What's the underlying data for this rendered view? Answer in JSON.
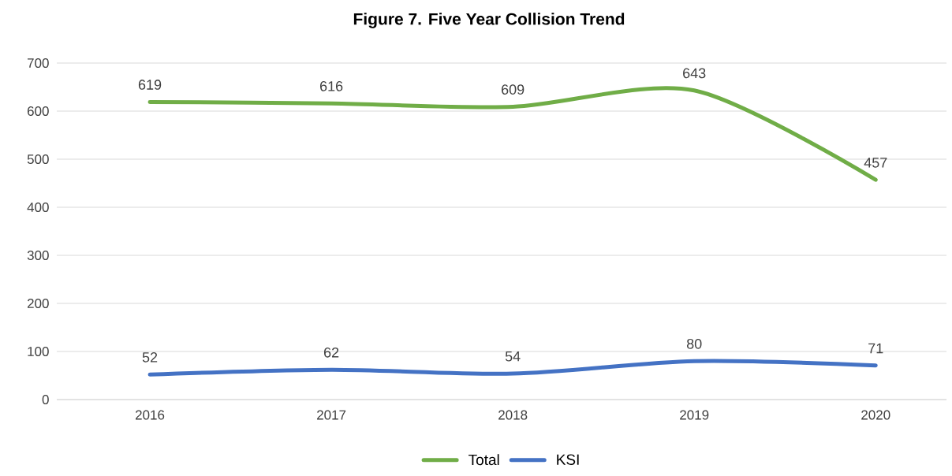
{
  "chart_data": {
    "type": "line",
    "title": "Figure 7. Five Year Collision Trend",
    "categories": [
      "2016",
      "2017",
      "2018",
      "2019",
      "2020"
    ],
    "series": [
      {
        "name": "Total",
        "color": "#70ad47",
        "values": [
          619,
          616,
          609,
          643,
          457
        ]
      },
      {
        "name": "KSI",
        "color": "#4472c4",
        "values": [
          52,
          62,
          54,
          80,
          71
        ]
      }
    ],
    "ylim": [
      0,
      700
    ],
    "yticks": [
      0,
      100,
      200,
      300,
      400,
      500,
      600,
      700
    ],
    "grid": "y",
    "legend": "bottom",
    "data_labels": true
  }
}
